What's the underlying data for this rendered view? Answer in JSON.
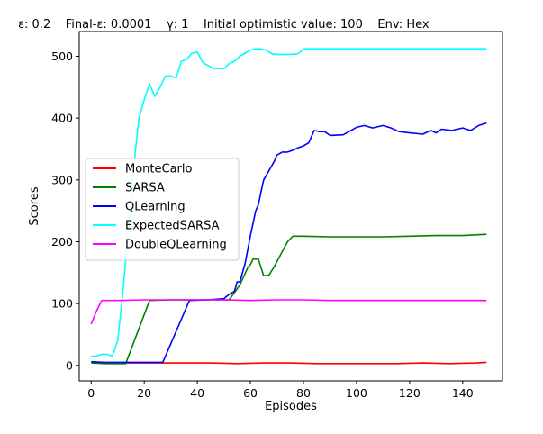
{
  "chart_data": {
    "type": "line",
    "title": "ε: 0.2    Final-ε: 0.0001    γ: 1    Initial optimistic value: 100    Env: Hex",
    "xlabel": "Episodes",
    "ylabel": "Scores",
    "xlim": [
      -4.5,
      155
    ],
    "ylim": [
      -25,
      540
    ],
    "xticks": [
      0,
      20,
      40,
      60,
      80,
      100,
      120,
      140
    ],
    "yticks": [
      0,
      100,
      200,
      300,
      400,
      500
    ],
    "grid": false,
    "legend_position": "center-left",
    "colors": {
      "MonteCarlo": "#ff0000",
      "SARSA": "#008000",
      "QLearning": "#0000ff",
      "ExpectedSARSA": "#00ffff",
      "DoubleQLearning": "#ff00ff"
    },
    "series": [
      {
        "name": "MonteCarlo",
        "points": [
          [
            0,
            5
          ],
          [
            5,
            4
          ],
          [
            15,
            4
          ],
          [
            30,
            4
          ],
          [
            45,
            4
          ],
          [
            55,
            3
          ],
          [
            65,
            4
          ],
          [
            75,
            4
          ],
          [
            85,
            3
          ],
          [
            100,
            3
          ],
          [
            115,
            3
          ],
          [
            125,
            4
          ],
          [
            135,
            3
          ],
          [
            145,
            4
          ],
          [
            149,
            5
          ]
        ]
      },
      {
        "name": "SARSA",
        "points": [
          [
            0,
            4
          ],
          [
            5,
            3
          ],
          [
            13,
            3
          ],
          [
            22,
            105
          ],
          [
            30,
            106
          ],
          [
            40,
            106
          ],
          [
            52,
            106
          ],
          [
            56,
            130
          ],
          [
            59,
            158
          ],
          [
            60,
            163
          ],
          [
            61,
            172
          ],
          [
            63,
            172
          ],
          [
            65,
            145
          ],
          [
            67,
            146
          ],
          [
            69,
            160
          ],
          [
            74,
            200
          ],
          [
            76,
            209
          ],
          [
            80,
            209
          ],
          [
            90,
            208
          ],
          [
            100,
            208
          ],
          [
            110,
            208
          ],
          [
            120,
            209
          ],
          [
            130,
            210
          ],
          [
            140,
            210
          ],
          [
            149,
            212
          ]
        ]
      },
      {
        "name": "QLearning",
        "points": [
          [
            0,
            6
          ],
          [
            5,
            5
          ],
          [
            15,
            5
          ],
          [
            27,
            5
          ],
          [
            32,
            55
          ],
          [
            37,
            105
          ],
          [
            44,
            106
          ],
          [
            50,
            108
          ],
          [
            52,
            115
          ],
          [
            54,
            120
          ],
          [
            55,
            135
          ],
          [
            56,
            135
          ],
          [
            58,
            165
          ],
          [
            60,
            210
          ],
          [
            61,
            230
          ],
          [
            62,
            250
          ],
          [
            63,
            260
          ],
          [
            64,
            280
          ],
          [
            65,
            300
          ],
          [
            67,
            315
          ],
          [
            69,
            330
          ],
          [
            70,
            340
          ],
          [
            72,
            345
          ],
          [
            74,
            345
          ],
          [
            76,
            348
          ],
          [
            78,
            352
          ],
          [
            80,
            355
          ],
          [
            82,
            360
          ],
          [
            84,
            380
          ],
          [
            86,
            378
          ],
          [
            88,
            378
          ],
          [
            90,
            372
          ],
          [
            95,
            373
          ],
          [
            100,
            385
          ],
          [
            103,
            388
          ],
          [
            106,
            384
          ],
          [
            110,
            388
          ],
          [
            113,
            384
          ],
          [
            116,
            378
          ],
          [
            120,
            376
          ],
          [
            125,
            374
          ],
          [
            128,
            380
          ],
          [
            130,
            376
          ],
          [
            132,
            382
          ],
          [
            136,
            380
          ],
          [
            140,
            384
          ],
          [
            143,
            380
          ],
          [
            146,
            388
          ],
          [
            149,
            392
          ]
        ]
      },
      {
        "name": "ExpectedSARSA",
        "points": [
          [
            0,
            15
          ],
          [
            2,
            15
          ],
          [
            4,
            18
          ],
          [
            6,
            18
          ],
          [
            8,
            15
          ],
          [
            10,
            40
          ],
          [
            12,
            120
          ],
          [
            14,
            220
          ],
          [
            16,
            320
          ],
          [
            18,
            400
          ],
          [
            20,
            430
          ],
          [
            22,
            455
          ],
          [
            24,
            435
          ],
          [
            26,
            450
          ],
          [
            28,
            468
          ],
          [
            30,
            468
          ],
          [
            32,
            465
          ],
          [
            34,
            492
          ],
          [
            36,
            495
          ],
          [
            38,
            505
          ],
          [
            40,
            507
          ],
          [
            42,
            490
          ],
          [
            44,
            485
          ],
          [
            46,
            480
          ],
          [
            50,
            480
          ],
          [
            52,
            488
          ],
          [
            54,
            492
          ],
          [
            56,
            500
          ],
          [
            58,
            505
          ],
          [
            60,
            510
          ],
          [
            62,
            512
          ],
          [
            64,
            512
          ],
          [
            66,
            510
          ],
          [
            68,
            504
          ],
          [
            70,
            503
          ],
          [
            75,
            503
          ],
          [
            78,
            504
          ],
          [
            80,
            512
          ],
          [
            100,
            512
          ],
          [
            120,
            512
          ],
          [
            140,
            512
          ],
          [
            149,
            512
          ]
        ]
      },
      {
        "name": "DoubleQLearning",
        "points": [
          [
            0,
            67
          ],
          [
            2,
            88
          ],
          [
            4,
            105
          ],
          [
            10,
            105
          ],
          [
            20,
            106
          ],
          [
            30,
            106
          ],
          [
            40,
            106
          ],
          [
            50,
            106
          ],
          [
            60,
            105
          ],
          [
            70,
            106
          ],
          [
            80,
            106
          ],
          [
            90,
            105
          ],
          [
            100,
            105
          ],
          [
            110,
            105
          ],
          [
            120,
            105
          ],
          [
            130,
            105
          ],
          [
            140,
            105
          ],
          [
            149,
            105
          ]
        ]
      }
    ]
  }
}
